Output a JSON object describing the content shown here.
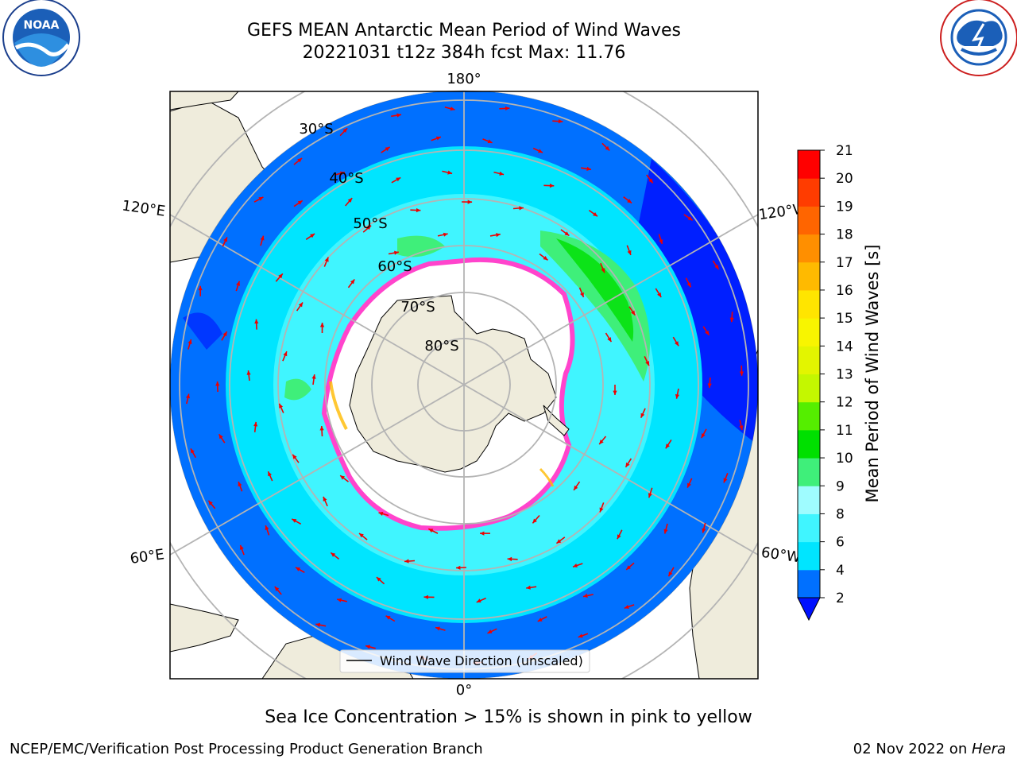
{
  "header": {
    "title_line1": "GEFS MEAN Antarctic Mean Period of Wind Waves",
    "title_line2": "20221031 t12z 384h fcst   Max: 11.76"
  },
  "logos": {
    "left": {
      "text": "NOAA",
      "ring_text": "NATIONAL OCEANIC AND ATMOSPHERIC ADMINISTRATION · U.S. DEPARTMENT OF COMMERCE"
    },
    "right": {
      "ring_text": "NATIONAL WEATHER SERVICE"
    }
  },
  "map": {
    "longitude_labels": {
      "top": "180°",
      "bottom": "0°",
      "upper_left": "120°E",
      "upper_right": "120°W",
      "lower_left": "60°E",
      "lower_right": "60°W"
    },
    "latitude_labels": [
      "30°S",
      "40°S",
      "50°S",
      "60°S",
      "70°S",
      "80°S"
    ],
    "legend_entry": "Wind Wave Direction (unscaled)",
    "colors": {
      "land": "#efecdc",
      "ice_edge": "#ff44cc",
      "arrow": "#ee0000",
      "grid": "#b4b4b4",
      "no_data": "#ffffff"
    }
  },
  "colorbar": {
    "label": "Mean Period of Wind Waves [s]",
    "ticks": [
      "2",
      "4",
      "6",
      "8",
      "9",
      "10",
      "11",
      "12",
      "13",
      "14",
      "15",
      "16",
      "17",
      "18",
      "19",
      "20",
      "21"
    ],
    "bins": [
      {
        "from": "2",
        "to": "4",
        "color": "#0070ff"
      },
      {
        "from": "4",
        "to": "6",
        "color": "#00e5ff"
      },
      {
        "from": "6",
        "to": "8",
        "color": "#40f5ff"
      },
      {
        "from": "8",
        "to": "9",
        "color": "#9ffcff"
      },
      {
        "from": "9",
        "to": "10",
        "color": "#3fef7a"
      },
      {
        "from": "10",
        "to": "11",
        "color": "#00e000"
      },
      {
        "from": "11",
        "to": "12",
        "color": "#55ee00"
      },
      {
        "from": "12",
        "to": "13",
        "color": "#c4f700"
      },
      {
        "from": "13",
        "to": "14",
        "color": "#e3f500"
      },
      {
        "from": "14",
        "to": "15",
        "color": "#f8f500"
      },
      {
        "from": "15",
        "to": "16",
        "color": "#ffe500"
      },
      {
        "from": "16",
        "to": "17",
        "color": "#ffba00"
      },
      {
        "from": "17",
        "to": "18",
        "color": "#ff8f00"
      },
      {
        "from": "18",
        "to": "19",
        "color": "#ff6500"
      },
      {
        "from": "19",
        "to": "20",
        "color": "#ff3c00"
      },
      {
        "from": "20",
        "to": "21",
        "color": "#ff0000"
      }
    ],
    "under_color": "#0010ff"
  },
  "caption": "Sea Ice Concentration > 15% is shown in pink to yellow",
  "footer": {
    "left": "NCEP/EMC/Verification Post Processing Product Generation Branch",
    "right_date": "02 Nov 2022 on ",
    "right_host": "Hera"
  }
}
